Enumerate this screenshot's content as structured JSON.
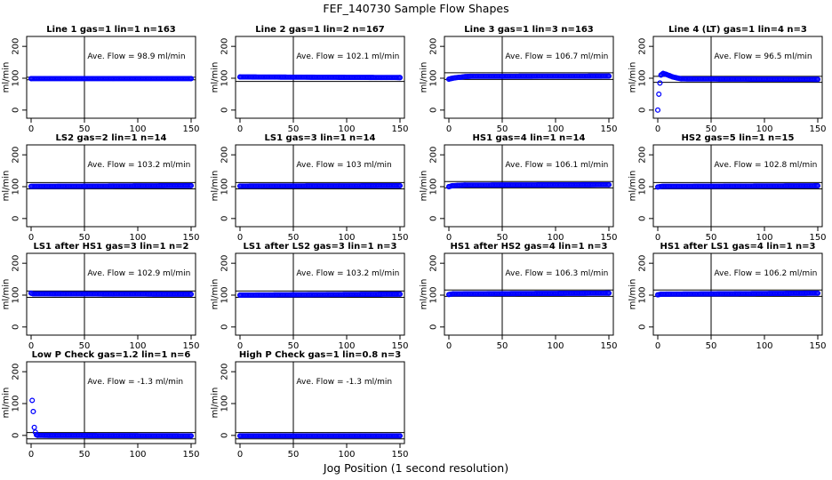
{
  "figure": {
    "title": "FEF_140730  Sample Flow Shapes",
    "xlabel": "Jog Position (1 second resolution)"
  },
  "colors": {
    "points": "#0000ff",
    "axes": "#000000"
  },
  "chart_data": [
    {
      "type": "scatter",
      "title": "Line 1 gas=1 lin=1 n=163",
      "ylabel": "ml/min",
      "annotation": "Ave. Flow =  98.9  ml/min",
      "xlim": [
        0,
        150
      ],
      "ylim": [
        -20,
        220
      ],
      "xticks": [
        0,
        50,
        100,
        150
      ],
      "yticks": [
        0,
        100,
        200
      ],
      "ref_lines": {
        "v": 50,
        "h": [
          95,
          103
        ]
      },
      "baseline": 98.9,
      "points": [
        [
          0,
          98.9
        ],
        [
          150,
          98.9
        ]
      ],
      "grid": false
    },
    {
      "type": "scatter",
      "title": "Line 2 gas=1 lin=2 n=167",
      "ylabel": "ml/min",
      "annotation": "Ave. Flow =  102.1  ml/min",
      "xlim": [
        0,
        150
      ],
      "ylim": [
        -20,
        220
      ],
      "xticks": [
        0,
        50,
        100,
        150
      ],
      "yticks": [
        0,
        100,
        200
      ],
      "ref_lines": {
        "v": 50,
        "h": [
          90
        ]
      },
      "baseline": 102.1,
      "points": [
        [
          0,
          104
        ],
        [
          150,
          102.1
        ]
      ],
      "grid": false
    },
    {
      "type": "scatter",
      "title": "Line 3 gas=1 lin=3 n=163",
      "ylabel": "ml/min",
      "annotation": "Ave. Flow =  106.7  ml/min",
      "xlim": [
        0,
        150
      ],
      "ylim": [
        -20,
        220
      ],
      "xticks": [
        0,
        50,
        100,
        150
      ],
      "yticks": [
        0,
        100,
        200
      ],
      "ref_lines": {
        "v": 50,
        "h": [
          96,
          117
        ]
      },
      "baseline": 106.7,
      "points": [
        [
          0,
          97
        ],
        [
          2,
          99
        ],
        [
          5,
          101
        ],
        [
          10,
          103
        ],
        [
          15,
          105
        ],
        [
          20,
          106
        ],
        [
          150,
          106.7
        ]
      ],
      "grid": false
    },
    {
      "type": "scatter",
      "title": "Line 4 (LT) gas=1 lin=4 n=3",
      "ylabel": "ml/min",
      "annotation": "Ave. Flow =  96.5  ml/min",
      "xlim": [
        0,
        150
      ],
      "ylim": [
        -20,
        220
      ],
      "xticks": [
        0,
        50,
        100,
        150
      ],
      "yticks": [
        0,
        100,
        200
      ],
      "ref_lines": {
        "v": 50,
        "h": [
          87,
          106
        ]
      },
      "baseline": 96.5,
      "points": [
        [
          0,
          0
        ],
        [
          1,
          50
        ],
        [
          2,
          85
        ],
        [
          3,
          110
        ],
        [
          5,
          115
        ],
        [
          8,
          112
        ],
        [
          11,
          108
        ],
        [
          14,
          104
        ],
        [
          18,
          101
        ],
        [
          22,
          98
        ],
        [
          150,
          96.5
        ]
      ],
      "grid": false
    },
    {
      "type": "scatter",
      "title": "LS2 gas=2 lin=1 n=14",
      "ylabel": "ml/min",
      "annotation": "Ave. Flow =  103.2  ml/min",
      "xlim": [
        0,
        150
      ],
      "ylim": [
        -20,
        220
      ],
      "xticks": [
        0,
        50,
        100,
        150
      ],
      "yticks": [
        0,
        100,
        200
      ],
      "ref_lines": {
        "v": 50,
        "h": [
          93,
          113
        ]
      },
      "baseline": 103.2,
      "points": [
        [
          0,
          101
        ],
        [
          150,
          103.2
        ]
      ],
      "grid": false
    },
    {
      "type": "scatter",
      "title": "LS1 gas=3 lin=1 n=14",
      "ylabel": "ml/min",
      "annotation": "Ave. Flow =  103  ml/min",
      "xlim": [
        0,
        150
      ],
      "ylim": [
        -20,
        220
      ],
      "xticks": [
        0,
        50,
        100,
        150
      ],
      "yticks": [
        0,
        100,
        200
      ],
      "ref_lines": {
        "v": 50,
        "h": [
          93,
          113
        ]
      },
      "baseline": 103,
      "points": [
        [
          0,
          102
        ],
        [
          150,
          103
        ]
      ],
      "grid": false
    },
    {
      "type": "scatter",
      "title": "HS1 gas=4 lin=1 n=14",
      "ylabel": "ml/min",
      "annotation": "Ave. Flow =  106.1  ml/min",
      "xlim": [
        0,
        150
      ],
      "ylim": [
        -20,
        220
      ],
      "xticks": [
        0,
        50,
        100,
        150
      ],
      "yticks": [
        0,
        100,
        200
      ],
      "ref_lines": {
        "v": 50,
        "h": [
          96,
          116
        ]
      },
      "baseline": 106.1,
      "points": [
        [
          0,
          100
        ],
        [
          3,
          103
        ],
        [
          8,
          104
        ],
        [
          15,
          105
        ],
        [
          150,
          106.1
        ]
      ],
      "grid": false
    },
    {
      "type": "scatter",
      "title": "HS2 gas=5 lin=1 n=15",
      "ylabel": "ml/min",
      "annotation": "Ave. Flow =  102.8  ml/min",
      "xlim": [
        0,
        150
      ],
      "ylim": [
        -20,
        220
      ],
      "xticks": [
        0,
        50,
        100,
        150
      ],
      "yticks": [
        0,
        100,
        200
      ],
      "ref_lines": {
        "v": 50,
        "h": [
          93,
          113
        ]
      },
      "baseline": 102.8,
      "points": [
        [
          0,
          99
        ],
        [
          4,
          101
        ],
        [
          150,
          102.8
        ]
      ],
      "grid": false
    },
    {
      "type": "scatter",
      "title": "LS1 after HS1 gas=3 lin=1 n=2",
      "ylabel": "ml/min",
      "annotation": "Ave. Flow =  102.9  ml/min",
      "xlim": [
        0,
        150
      ],
      "ylim": [
        -20,
        220
      ],
      "xticks": [
        0,
        50,
        100,
        150
      ],
      "yticks": [
        0,
        100,
        200
      ],
      "ref_lines": {
        "v": 50,
        "h": [
          93,
          113
        ]
      },
      "baseline": 102.9,
      "points": [
        [
          0,
          106
        ],
        [
          2,
          104
        ],
        [
          150,
          102.9
        ]
      ],
      "grid": false
    },
    {
      "type": "scatter",
      "title": "LS1 after LS2 gas=3 lin=1 n=3",
      "ylabel": "ml/min",
      "annotation": "Ave. Flow =  103.2  ml/min",
      "xlim": [
        0,
        150
      ],
      "ylim": [
        -20,
        220
      ],
      "xticks": [
        0,
        50,
        100,
        150
      ],
      "yticks": [
        0,
        100,
        200
      ],
      "ref_lines": {
        "v": 50,
        "h": [
          93,
          113
        ]
      },
      "baseline": 103.2,
      "points": [
        [
          0,
          100
        ],
        [
          150,
          103.2
        ]
      ],
      "grid": false
    },
    {
      "type": "scatter",
      "title": "HS1 after HS2 gas=4 lin=1 n=3",
      "ylabel": "ml/min",
      "annotation": "Ave. Flow =  106.3  ml/min",
      "xlim": [
        0,
        150
      ],
      "ylim": [
        -20,
        220
      ],
      "xticks": [
        0,
        50,
        100,
        150
      ],
      "yticks": [
        0,
        100,
        200
      ],
      "ref_lines": {
        "v": 50,
        "h": [
          96,
          116
        ]
      },
      "baseline": 106.3,
      "points": [
        [
          0,
          102
        ],
        [
          4,
          104
        ],
        [
          150,
          106.3
        ]
      ],
      "grid": false
    },
    {
      "type": "scatter",
      "title": "HS1 after LS1 gas=4 lin=1 n=3",
      "ylabel": "ml/min",
      "annotation": "Ave. Flow =  106.2  ml/min",
      "xlim": [
        0,
        150
      ],
      "ylim": [
        -20,
        220
      ],
      "xticks": [
        0,
        50,
        100,
        150
      ],
      "yticks": [
        0,
        100,
        200
      ],
      "ref_lines": {
        "v": 50,
        "h": [
          96,
          116
        ]
      },
      "baseline": 106.2,
      "points": [
        [
          0,
          101
        ],
        [
          3,
          103
        ],
        [
          150,
          106.2
        ]
      ],
      "grid": false
    },
    {
      "type": "scatter",
      "title": "Low P Check gas=1.2 lin=1 n=6",
      "ylabel": "ml/min",
      "annotation": "Ave. Flow =  -1.3  ml/min",
      "xlim": [
        0,
        150
      ],
      "ylim": [
        -20,
        220
      ],
      "xticks": [
        0,
        50,
        100,
        150
      ],
      "yticks": [
        0,
        100,
        200
      ],
      "ref_lines": {
        "v": 50,
        "h": [
          -11,
          9
        ]
      },
      "baseline": -1.3,
      "points": [
        [
          1,
          110
        ],
        [
          2,
          75
        ],
        [
          3,
          25
        ],
        [
          4,
          10
        ],
        [
          5,
          2
        ],
        [
          6,
          0
        ],
        [
          150,
          -1.3
        ]
      ],
      "grid": false
    },
    {
      "type": "scatter",
      "title": "High P Check gas=1 lin=0.8 n=3",
      "ylabel": "ml/min",
      "annotation": "Ave. Flow =  -1.3  ml/min",
      "xlim": [
        0,
        150
      ],
      "ylim": [
        -20,
        220
      ],
      "xticks": [
        0,
        50,
        100,
        150
      ],
      "yticks": [
        0,
        100,
        200
      ],
      "ref_lines": {
        "v": 50,
        "h": [
          -11,
          9
        ]
      },
      "baseline": -1.3,
      "points": [
        [
          0,
          -1.3
        ],
        [
          150,
          -1.3
        ]
      ],
      "grid": false
    }
  ]
}
